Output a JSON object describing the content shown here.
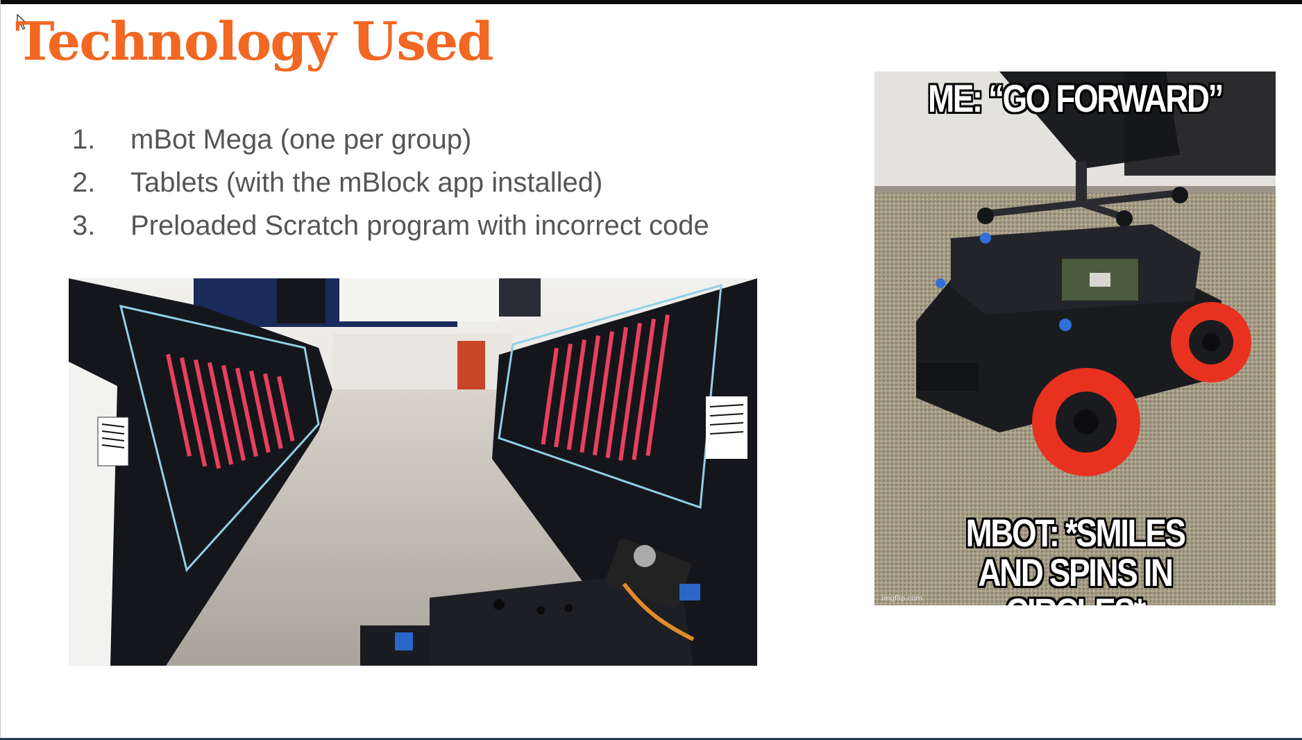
{
  "slide": {
    "title": "Technology Used",
    "list": [
      {
        "num": "1.",
        "text": "mBot Mega (one per group)"
      },
      {
        "num": "2.",
        "text": "Tablets (with the mBlock app installed)"
      },
      {
        "num": "3.",
        "text": "Preloaded Scratch program with incorrect code"
      }
    ]
  },
  "meme": {
    "top_text": "ME: “GO FORWARD”",
    "bottom_line1": "MBOT: *SMILES",
    "bottom_line2": "AND SPINS IN CIRCLES*",
    "watermark": "imgflip.com"
  },
  "colors": {
    "title": "#f26722",
    "body_text": "#555555",
    "wheel": "#e8321f"
  },
  "icons": {
    "cursor": "mouse-pointer-icon"
  }
}
